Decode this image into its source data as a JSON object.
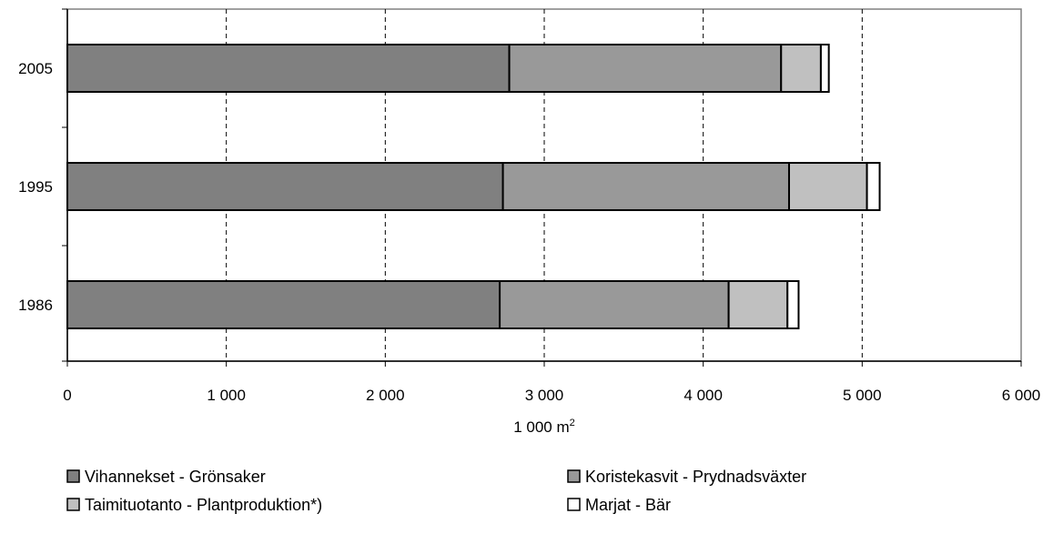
{
  "chart_data": {
    "type": "bar",
    "orientation": "horizontal",
    "stacked": true,
    "categories": [
      "2005",
      "1995",
      "1986"
    ],
    "series": [
      {
        "name": "Vihannekset - Grönsaker",
        "values": [
          2780,
          2740,
          2720
        ],
        "color": "#808080"
      },
      {
        "name": "Koristekasvit - Prydnadsväxter",
        "values": [
          1710,
          1800,
          1440
        ],
        "color": "#999999"
      },
      {
        "name": "Taimituotanto - Plantproduktion*)",
        "values": [
          250,
          490,
          370
        ],
        "color": "#c0c0c0"
      },
      {
        "name": "Marjat - Bär",
        "values": [
          50,
          80,
          70
        ],
        "color": "#ffffff"
      }
    ],
    "xlabel": "1 000 m",
    "xlabel_sup": "2",
    "xlim": [
      0,
      6000
    ],
    "xticks": [
      0,
      1000,
      2000,
      3000,
      4000,
      5000,
      6000
    ],
    "xtick_labels": [
      "0",
      "1 000",
      "2 000",
      "3 000",
      "4 000",
      "5 000",
      "6 000"
    ],
    "grid": "vertical dashed",
    "legend_position": "bottom"
  }
}
